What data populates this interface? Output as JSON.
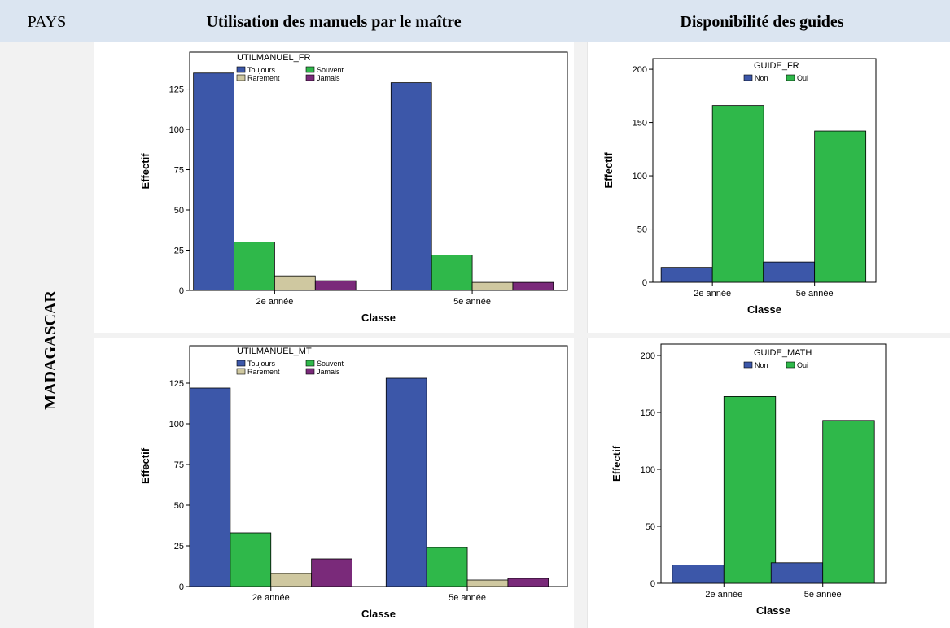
{
  "header": {
    "pays": "PAYS",
    "col1": "Utilisation des manuels par le maître",
    "col2": "Disponibilité des guides"
  },
  "country": "MADAGASCAR",
  "chart_data": [
    {
      "id": "utilmanuel_fr",
      "type": "bar",
      "legend_title": "UTILMANUEL_FR",
      "legend_placement": "top-left",
      "categories": [
        "2e année",
        "5e année"
      ],
      "series": [
        {
          "name": "Toujours",
          "color": "#3c57a9",
          "values": [
            135,
            129
          ]
        },
        {
          "name": "Souvent",
          "color": "#2fb84a",
          "values": [
            30,
            22
          ]
        },
        {
          "name": "Rarement",
          "color": "#cfc8a0",
          "values": [
            9,
            5
          ]
        },
        {
          "name": "Jamais",
          "color": "#7a2a7a",
          "values": [
            6,
            5
          ]
        }
      ],
      "xlabel": "Classe",
      "ylabel": "Effectif",
      "ylim": [
        0,
        148
      ],
      "yticks": [
        0,
        25,
        50,
        75,
        100,
        125
      ],
      "grid": false
    },
    {
      "id": "guide_fr",
      "type": "bar",
      "legend_title": "GUIDE_FR",
      "legend_placement": "top-center",
      "categories": [
        "2e année",
        "5e année"
      ],
      "series": [
        {
          "name": "Non",
          "color": "#3c57a9",
          "values": [
            14,
            19
          ]
        },
        {
          "name": "Oui",
          "color": "#2fb84a",
          "values": [
            166,
            142
          ]
        }
      ],
      "xlabel": "Classe",
      "ylabel": "Effectif",
      "ylim": [
        0,
        210
      ],
      "yticks": [
        0,
        50,
        100,
        150,
        200
      ],
      "grid": false
    },
    {
      "id": "utilmanuel_mt",
      "type": "bar",
      "legend_title": "UTILMANUEL_MT",
      "legend_placement": "top-left",
      "categories": [
        "2e année",
        "5e année"
      ],
      "series": [
        {
          "name": "Toujours",
          "color": "#3c57a9",
          "values": [
            122,
            128
          ]
        },
        {
          "name": "Souvent",
          "color": "#2fb84a",
          "values": [
            33,
            24
          ]
        },
        {
          "name": "Rarement",
          "color": "#cfc8a0",
          "values": [
            8,
            4
          ]
        },
        {
          "name": "Jamais",
          "color": "#7a2a7a",
          "values": [
            17,
            5
          ]
        }
      ],
      "xlabel": "Classe",
      "ylabel": "Effectif",
      "ylim": [
        0,
        148
      ],
      "yticks": [
        0,
        25,
        50,
        75,
        100,
        125
      ],
      "grid": false
    },
    {
      "id": "guide_math",
      "type": "bar",
      "legend_title": "GUIDE_MATH",
      "legend_placement": "top-center",
      "categories": [
        "2e année",
        "5e année"
      ],
      "series": [
        {
          "name": "Non",
          "color": "#3c57a9",
          "values": [
            16,
            18
          ]
        },
        {
          "name": "Oui",
          "color": "#2fb84a",
          "values": [
            164,
            143
          ]
        }
      ],
      "xlabel": "Classe",
      "ylabel": "Effectif",
      "ylim": [
        0,
        210
      ],
      "yticks": [
        0,
        50,
        100,
        150,
        200
      ],
      "grid": false
    }
  ]
}
